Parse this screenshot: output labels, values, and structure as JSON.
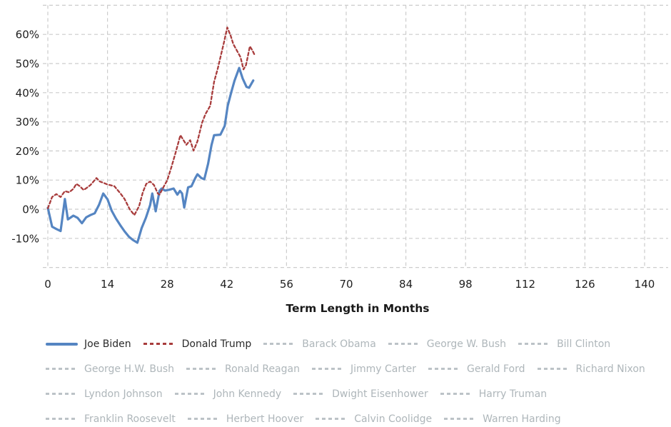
{
  "chart_data": {
    "type": "line",
    "title": "",
    "xlabel": "Term Length in Months",
    "ylabel": "",
    "xlim": [
      0,
      145.5
    ],
    "ylim": [
      -20,
      70
    ],
    "grid": true,
    "legend_position": "bottom",
    "x_ticks": [
      0,
      14,
      28,
      42,
      56,
      70,
      84,
      98,
      112,
      126,
      140
    ],
    "y_tick_values": [
      -10,
      0,
      10,
      20,
      30,
      40,
      50,
      60
    ],
    "y_tick_labels": [
      "-10%",
      "0%",
      "10%",
      "20%",
      "30%",
      "40%",
      "50%",
      "60%"
    ],
    "series": [
      {
        "name": "Joe Biden",
        "color": "#5585c2",
        "style": "solid",
        "x": [
          0,
          1,
          2,
          3,
          4,
          4.7,
          6,
          7,
          8,
          9,
          10,
          11,
          12,
          13,
          14,
          15,
          16,
          17,
          18,
          19,
          20,
          21,
          22,
          23,
          24,
          24.5,
          25.3,
          26.2,
          26.7,
          27.5,
          28.5,
          29.5,
          30.4,
          31,
          31.5,
          32,
          32.9,
          33.7,
          34.6,
          35.1,
          36,
          36.7,
          37.6,
          38.4,
          39,
          40.5,
          41.5,
          42.2,
          43,
          43.8,
          44.9,
          45.7,
          46.6,
          47.2,
          48.2
        ],
        "y": [
          0.5,
          -6,
          -6.8,
          -7.5,
          3.5,
          -3.5,
          -2.2,
          -3,
          -4.8,
          -2.8,
          -2,
          -1.4,
          1.5,
          5.4,
          3.4,
          -0.6,
          -3.2,
          -5.5,
          -7.6,
          -9.4,
          -10.6,
          -11.5,
          -6.5,
          -3,
          1.4,
          5.4,
          -0.7,
          6.3,
          7.1,
          6.4,
          6.7,
          7.1,
          5.0,
          6.3,
          5.4,
          0.6,
          7.5,
          7.9,
          10.7,
          12.0,
          10.7,
          10.3,
          15.6,
          22,
          25.4,
          25.6,
          28.6,
          35.5,
          40,
          44.1,
          48.5,
          44.9,
          42,
          41.7,
          44.2
        ]
      },
      {
        "name": "Donald Trump",
        "color": "#a83c3c",
        "style": "dashed",
        "x": [
          0,
          1,
          2,
          3,
          4,
          5,
          6,
          6.7,
          7.5,
          8.4,
          9.2,
          10,
          11,
          11.4,
          12.2,
          13,
          14,
          15.6,
          17,
          18,
          19.2,
          20.3,
          21.4,
          22.3,
          23.1,
          24,
          24.9,
          25.8,
          26.2,
          27.1,
          28,
          29,
          30,
          31.1,
          32.5,
          33.4,
          34.2,
          35.1,
          36.2,
          37,
          38.1,
          39,
          39.9,
          40.7,
          41.3,
          42.1,
          42.9,
          43.5,
          44.3,
          45.2,
          45.9,
          46.5,
          47.4,
          48,
          48.5
        ],
        "y": [
          0.3,
          4.2,
          5.2,
          4.2,
          6.2,
          5.8,
          7,
          8.7,
          7.9,
          6.6,
          7.4,
          8.3,
          10,
          10.7,
          9.5,
          9.1,
          8.5,
          7.9,
          5.5,
          3.5,
          0,
          -2,
          1.0,
          5.9,
          8.7,
          9.5,
          8.3,
          5.4,
          5.0,
          7.5,
          9.9,
          14.5,
          19.5,
          25.4,
          22.1,
          23.7,
          20.1,
          23.3,
          29.8,
          32.7,
          35.5,
          43.7,
          48.5,
          53.4,
          57.1,
          62.4,
          59.5,
          56.7,
          54.6,
          52.2,
          48.0,
          49.5,
          55.9,
          54.5,
          53.0
        ]
      }
    ]
  },
  "legend": {
    "rows": [
      [
        {
          "label": "Joe Biden",
          "active": true
        },
        {
          "label": "Donald Trump",
          "active": true
        },
        {
          "label": "Barack Obama",
          "active": false
        },
        {
          "label": "George W. Bush",
          "active": false
        },
        {
          "label": "Bill Clinton",
          "active": false
        }
      ],
      [
        {
          "label": "George H.W. Bush",
          "active": false
        },
        {
          "label": "Ronald Reagan",
          "active": false
        },
        {
          "label": "Jimmy Carter",
          "active": false
        },
        {
          "label": "Gerald Ford",
          "active": false
        },
        {
          "label": "Richard Nixon",
          "active": false
        }
      ],
      [
        {
          "label": "Lyndon Johnson",
          "active": false
        },
        {
          "label": "John Kennedy",
          "active": false
        },
        {
          "label": "Dwight Eisenhower",
          "active": false
        },
        {
          "label": "Harry Truman",
          "active": false
        }
      ],
      [
        {
          "label": "Franklin Roosevelt",
          "active": false
        },
        {
          "label": "Herbert Hoover",
          "active": false
        },
        {
          "label": "Calvin Coolidge",
          "active": false
        },
        {
          "label": "Warren Harding",
          "active": false
        }
      ]
    ]
  },
  "theme": {
    "grid_color": "#cccccc",
    "tick_text_color": "#1f1f1f",
    "axis_title_color": "#1a1a1a",
    "legend_active_text": "#2a2a2a",
    "legend_inactive_text": "#aeb6ba",
    "legend_inactive_dash": "#bcc3c7",
    "background": "#ffffff"
  }
}
